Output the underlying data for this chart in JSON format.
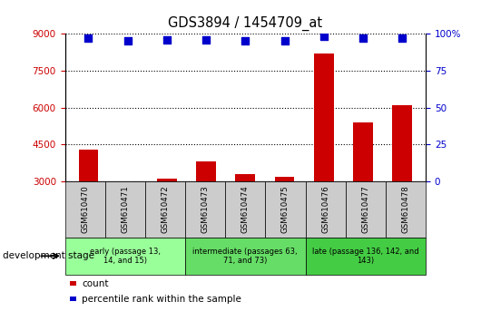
{
  "title": "GDS3894 / 1454709_at",
  "samples": [
    "GSM610470",
    "GSM610471",
    "GSM610472",
    "GSM610473",
    "GSM610474",
    "GSM610475",
    "GSM610476",
    "GSM610477",
    "GSM610478"
  ],
  "counts": [
    4300,
    3010,
    3100,
    3800,
    3300,
    3200,
    8200,
    5400,
    6100
  ],
  "percentile_ranks": [
    97,
    95,
    96,
    96,
    95,
    95,
    98,
    97,
    97
  ],
  "count_color": "#cc0000",
  "percentile_color": "#0000cc",
  "ylim_left": [
    3000,
    9000
  ],
  "ylim_right": [
    0,
    100
  ],
  "yticks_left": [
    3000,
    4500,
    6000,
    7500,
    9000
  ],
  "yticks_right": [
    0,
    25,
    50,
    75,
    100
  ],
  "groups": [
    {
      "label": "early (passage 13,\n14, and 15)",
      "start": 0,
      "end": 3,
      "color": "#99ff99"
    },
    {
      "label": "intermediate (passages 63,\n71, and 73)",
      "start": 3,
      "end": 6,
      "color": "#66dd66"
    },
    {
      "label": "late (passage 136, 142, and\n143)",
      "start": 6,
      "end": 9,
      "color": "#44cc44"
    }
  ],
  "development_stage_label": "development stage",
  "legend_count_label": "count",
  "legend_percentile_label": "percentile rank within the sample",
  "bar_width": 0.5,
  "xticklabel_box_color": "#cccccc"
}
